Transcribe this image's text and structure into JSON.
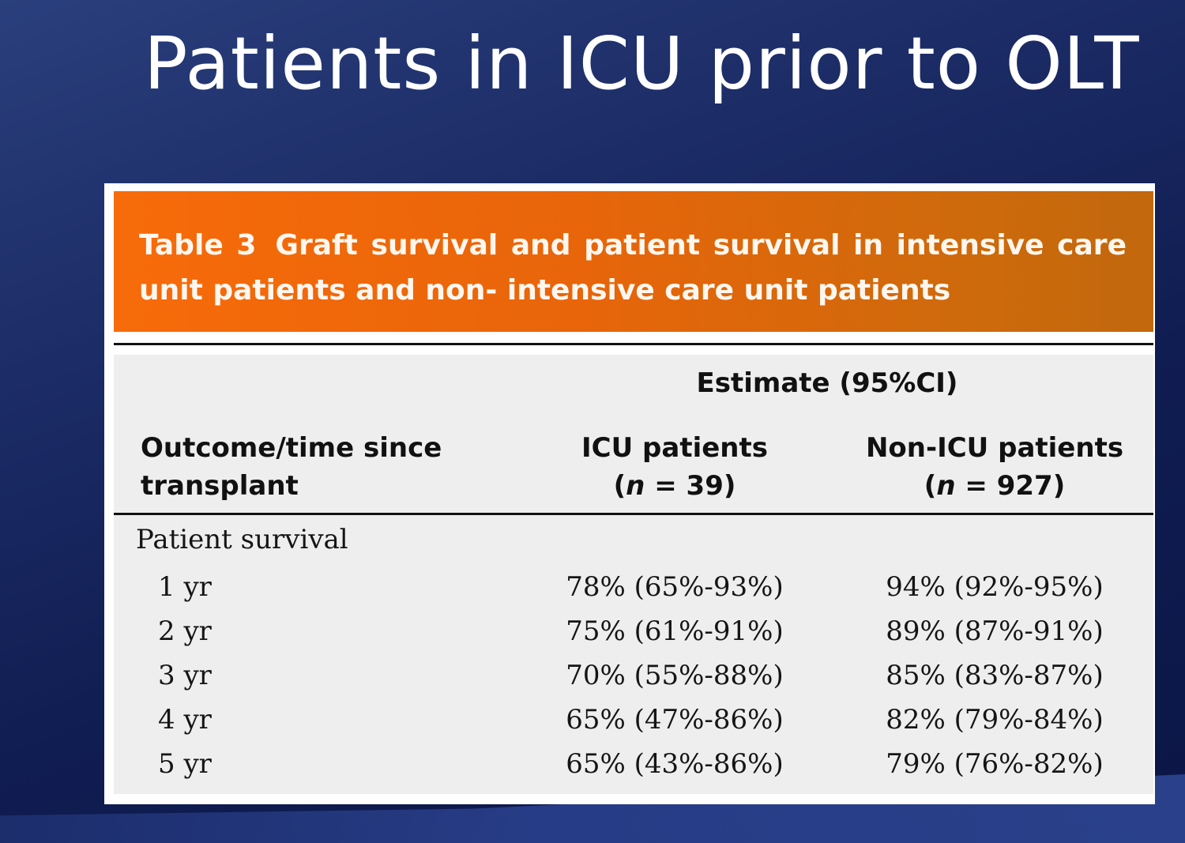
{
  "slide": {
    "title": "Patients in ICU prior to OLT"
  },
  "table": {
    "label": "Table 3",
    "caption": "Graft survival and patient survival in intensive care unit patients and non- intensive care unit patients",
    "spanner_header": "Estimate (95%CI)",
    "columns": {
      "outcome_line1": "Outcome/time since",
      "outcome_line2": "transplant",
      "icu_line1": "ICU patients",
      "icu_n": "39",
      "non_icu_line1": "Non-ICU patients",
      "non_icu_n": "927"
    },
    "section": "Patient survival",
    "rows": [
      {
        "time": "1 yr",
        "icu": "78% (65%-93%)",
        "non_icu": "94% (92%-95%)"
      },
      {
        "time": "2 yr",
        "icu": "75% (61%-91%)",
        "non_icu": "89% (87%-91%)"
      },
      {
        "time": "3 yr",
        "icu": "70% (55%-88%)",
        "non_icu": "85% (83%-87%)"
      },
      {
        "time": "4 yr",
        "icu": "65% (47%-86%)",
        "non_icu": "82% (79%-84%)"
      },
      {
        "time": "5 yr",
        "icu": "65% (43%-86%)",
        "non_icu": "79% (76%-82%)"
      }
    ]
  },
  "colors": {
    "background": "#101d52",
    "caption_band": "#e8650a",
    "table_body": "#eeeeee",
    "title_text": "#ffffff"
  }
}
